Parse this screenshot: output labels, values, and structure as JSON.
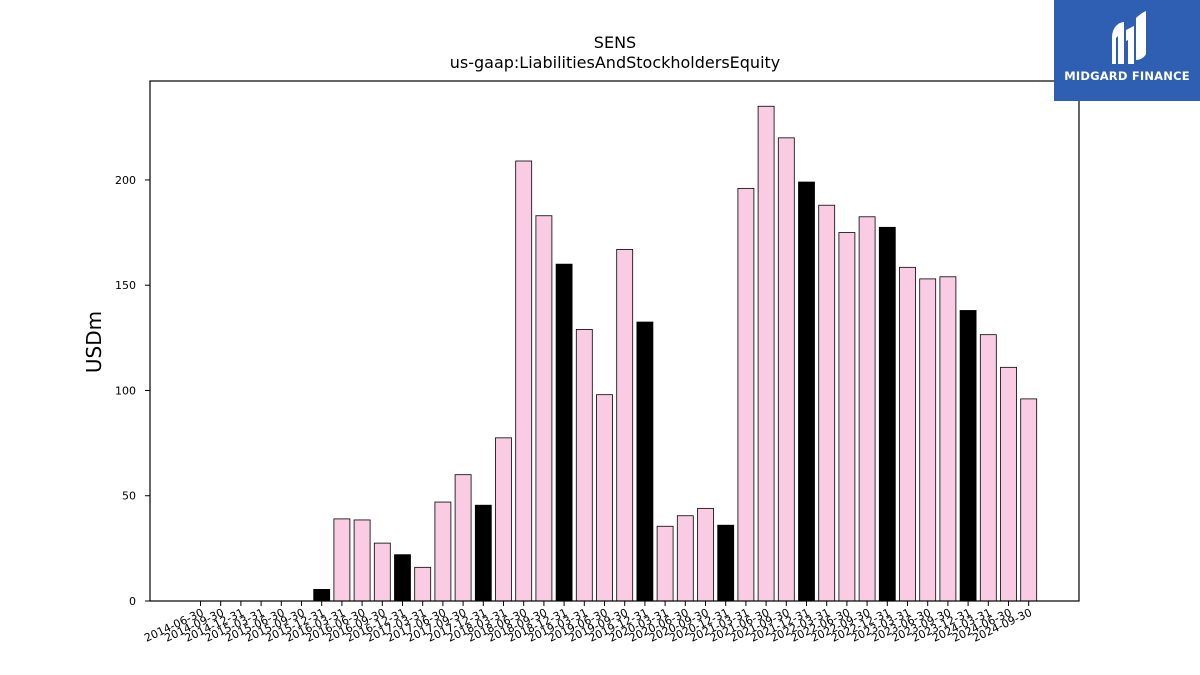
{
  "brand": {
    "name": "MIDGARD FINANCE",
    "logo_icon": "midgard-logo-icon",
    "background": "#2f5fb3"
  },
  "colors": {
    "bar_default": "#f9cce3",
    "bar_highlight": "#000000",
    "bar_edge": "#000000"
  },
  "chart_data": {
    "type": "bar",
    "title": "SENS",
    "subtitle": "us-gaap:LiabilitiesAndStockholdersEquity",
    "xlabel": "",
    "ylabel": "USDm",
    "ylim": [
      0,
      247
    ],
    "yticks": [
      0,
      50,
      100,
      150,
      200
    ],
    "grid": false,
    "categories": [
      "2014-06-30",
      "2014-09-30",
      "2014-12-31",
      "2015-03-31",
      "2015-06-30",
      "2015-09-30",
      "2015-12-31",
      "2016-03-31",
      "2016-06-30",
      "2016-09-30",
      "2016-12-31",
      "2017-03-31",
      "2017-06-30",
      "2017-09-30",
      "2017-12-31",
      "2018-03-31",
      "2018-06-30",
      "2018-09-30",
      "2018-12-31",
      "2019-03-31",
      "2019-06-30",
      "2019-09-30",
      "2019-12-31",
      "2020-03-31",
      "2020-06-30",
      "2020-09-30",
      "2020-12-31",
      "2021-03-31",
      "2021-06-30",
      "2021-09-30",
      "2021-12-31",
      "2022-03-31",
      "2022-06-30",
      "2022-09-30",
      "2022-12-31",
      "2023-03-31",
      "2023-06-30",
      "2023-09-30",
      "2023-12-31",
      "2024-03-31",
      "2024-06-30",
      "2024-09-30"
    ],
    "values": [
      0,
      0,
      0,
      0,
      0,
      0,
      5.5,
      39,
      38.5,
      27.5,
      22,
      16,
      47,
      60,
      45.5,
      77.5,
      209,
      183,
      160,
      129,
      98,
      167,
      132.5,
      35.5,
      40.5,
      44,
      36,
      196,
      235,
      220,
      199,
      188,
      175,
      182.5,
      177.5,
      158.5,
      153,
      154,
      138,
      126.5,
      111,
      96
    ],
    "highlighted": [
      false,
      false,
      false,
      false,
      false,
      false,
      true,
      false,
      false,
      false,
      true,
      false,
      false,
      false,
      true,
      false,
      false,
      false,
      true,
      false,
      false,
      false,
      true,
      false,
      false,
      false,
      true,
      false,
      false,
      false,
      true,
      false,
      false,
      false,
      true,
      false,
      false,
      false,
      true,
      false,
      false,
      false
    ]
  }
}
